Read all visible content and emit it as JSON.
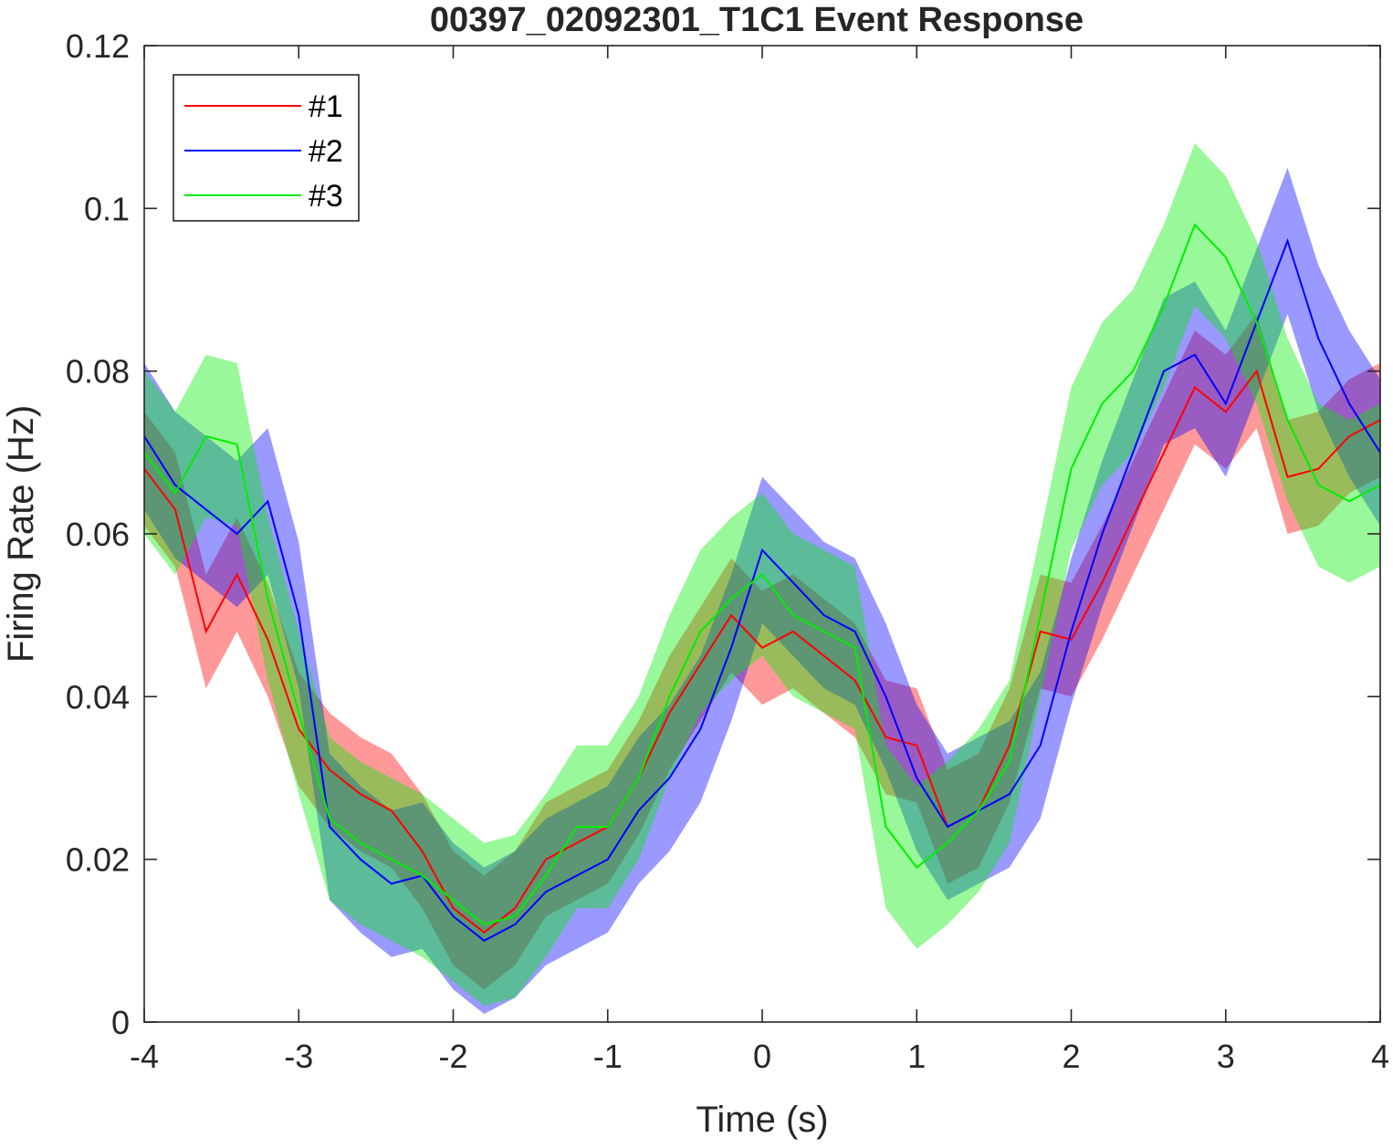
{
  "chart_data": {
    "type": "line",
    "title": "00397_02092301_T1C1 Event Response",
    "xlabel": "Time (s)",
    "ylabel": "Firing Rate (Hz)",
    "xlim": [
      -4,
      4
    ],
    "ylim": [
      0,
      0.12
    ],
    "xticks": [
      -4,
      -3,
      -2,
      -1,
      0,
      1,
      2,
      3,
      4
    ],
    "yticks": [
      0,
      0.02,
      0.04,
      0.06,
      0.08,
      0.1,
      0.12
    ],
    "xtick_labels": [
      "-4",
      "-3",
      "-2",
      "-1",
      "0",
      "1",
      "2",
      "3",
      "4"
    ],
    "ytick_labels": [
      "0",
      "0.02",
      "0.04",
      "0.06",
      "0.08",
      "0.1",
      "0.12"
    ],
    "grid": false,
    "legend_position": "top-left",
    "shaded_error_band": true,
    "x": [
      -4.0,
      -3.8,
      -3.6,
      -3.4,
      -3.2,
      -3.0,
      -2.8,
      -2.6,
      -2.4,
      -2.2,
      -2.0,
      -1.8,
      -1.6,
      -1.4,
      -1.2,
      -1.0,
      -0.8,
      -0.6,
      -0.4,
      -0.2,
      0.0,
      0.2,
      0.4,
      0.6,
      0.8,
      1.0,
      1.2,
      1.4,
      1.6,
      1.8,
      2.0,
      2.2,
      2.4,
      2.6,
      2.8,
      3.0,
      3.2,
      3.4,
      3.6,
      3.8,
      4.0
    ],
    "series": [
      {
        "name": "#1",
        "color": "#ff0000",
        "values": [
          0.068,
          0.063,
          0.048,
          0.055,
          0.047,
          0.036,
          0.031,
          0.028,
          0.026,
          0.021,
          0.014,
          0.011,
          0.014,
          0.02,
          0.022,
          0.024,
          0.03,
          0.038,
          0.044,
          0.05,
          0.046,
          0.048,
          0.045,
          0.042,
          0.035,
          0.034,
          0.024,
          0.026,
          0.034,
          0.048,
          0.047,
          0.054,
          0.062,
          0.07,
          0.078,
          0.075,
          0.08,
          0.067,
          0.068,
          0.072,
          0.074
        ],
        "band": 0.007
      },
      {
        "name": "#2",
        "color": "#0000ff",
        "values": [
          0.072,
          0.066,
          0.063,
          0.06,
          0.064,
          0.05,
          0.024,
          0.02,
          0.017,
          0.018,
          0.013,
          0.01,
          0.012,
          0.016,
          0.018,
          0.02,
          0.026,
          0.03,
          0.036,
          0.046,
          0.058,
          0.054,
          0.05,
          0.048,
          0.04,
          0.03,
          0.024,
          0.026,
          0.028,
          0.034,
          0.048,
          0.06,
          0.07,
          0.08,
          0.082,
          0.076,
          0.086,
          0.096,
          0.084,
          0.076,
          0.07
        ],
        "band": 0.009
      },
      {
        "name": "#3",
        "color": "#00ee00",
        "values": [
          0.07,
          0.065,
          0.072,
          0.071,
          0.052,
          0.038,
          0.025,
          0.022,
          0.02,
          0.018,
          0.015,
          0.012,
          0.013,
          0.018,
          0.024,
          0.024,
          0.03,
          0.04,
          0.048,
          0.052,
          0.055,
          0.05,
          0.048,
          0.046,
          0.024,
          0.019,
          0.022,
          0.026,
          0.032,
          0.05,
          0.068,
          0.076,
          0.08,
          0.088,
          0.098,
          0.094,
          0.086,
          0.074,
          0.066,
          0.064,
          0.066
        ],
        "band": 0.01
      }
    ]
  }
}
